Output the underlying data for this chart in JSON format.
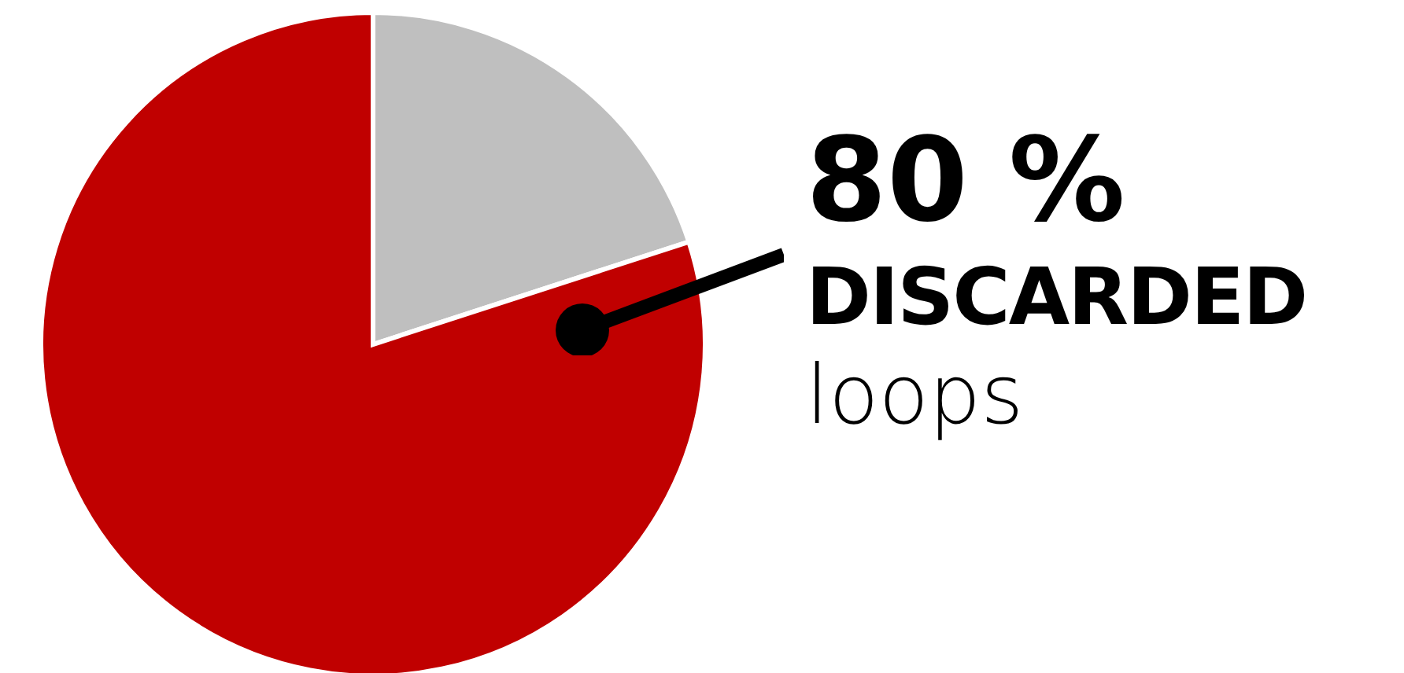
{
  "chart_data": {
    "type": "pie",
    "categories": [
      null,
      "DISCARDED loops"
    ],
    "values": [
      20,
      80
    ],
    "colors": [
      "#bfbfbf",
      "#c00000"
    ],
    "value_labels": [
      null,
      "80 %"
    ]
  }
}
